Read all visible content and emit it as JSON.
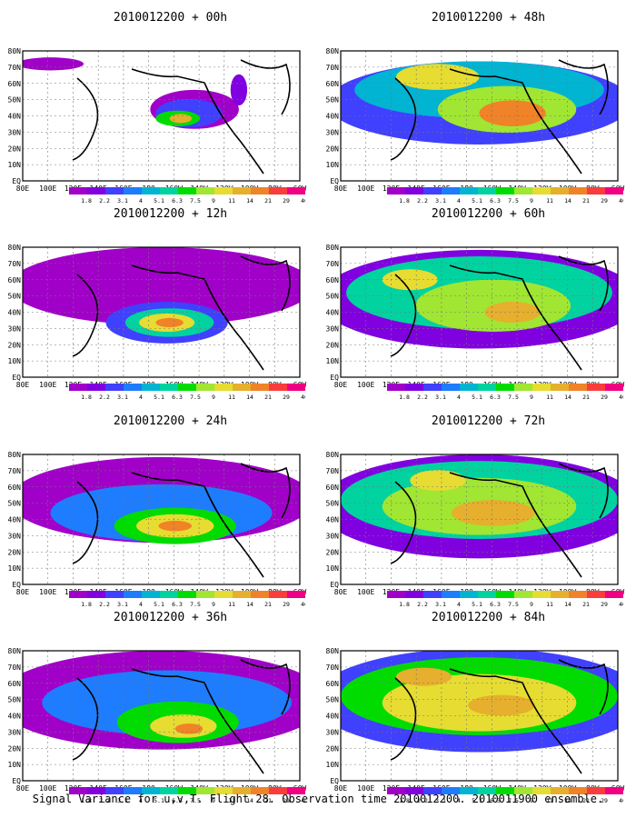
{
  "footer": "Signal Variance for u,v,T. Flight 28. Observation time 2010012200. 2010011900 ensemble.",
  "lat_labels": [
    "80N",
    "70N",
    "60N",
    "50N",
    "40N",
    "30N",
    "20N",
    "10N",
    "EQ"
  ],
  "lon_labels": [
    "80E",
    "100E",
    "120E",
    "140E",
    "160E",
    "180",
    "160W",
    "140W",
    "120W",
    "100W",
    "80W",
    "60W"
  ],
  "colorbar": {
    "labels": [
      "1.8",
      "2.2",
      "3.1",
      "4",
      "5.1",
      "6.3",
      "7.5",
      "9",
      "11",
      "14",
      "21",
      "29",
      "40"
    ],
    "colors": [
      "#a000c8",
      "#8000e0",
      "#4040ff",
      "#1e7cff",
      "#00b4d2",
      "#00d2a0",
      "#00dc00",
      "#a0e632",
      "#e6dc32",
      "#e6af2d",
      "#f08228",
      "#fa3c3c",
      "#f00082"
    ]
  },
  "panels": [
    {
      "title": "2010012200 + 00h",
      "col": 0,
      "row": 0
    },
    {
      "title": "2010012200 + 12h",
      "col": 0,
      "row": 1
    },
    {
      "title": "2010012200 + 24h",
      "col": 0,
      "row": 2
    },
    {
      "title": "2010012200 + 36h",
      "col": 0,
      "row": 3
    },
    {
      "title": "2010012200 + 48h",
      "col": 1,
      "row": 0
    },
    {
      "title": "2010012200 + 60h",
      "col": 1,
      "row": 1
    },
    {
      "title": "2010012200 + 72h",
      "col": 1,
      "row": 2
    },
    {
      "title": "2010012200 + 84h",
      "col": 1,
      "row": 3
    }
  ]
}
